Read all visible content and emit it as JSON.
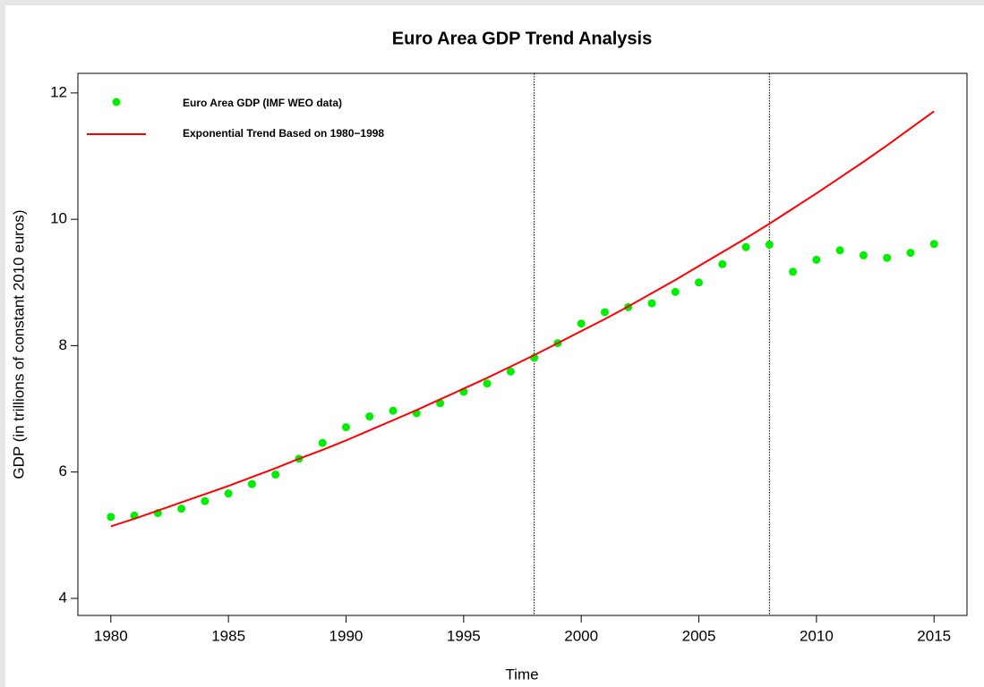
{
  "chart_data": {
    "type": "scatter",
    "title": "Euro Area GDP Trend Analysis",
    "x_label": "Time",
    "y_label": "GDP (in trillions of constant 2010 euros)",
    "x": [
      1980,
      1981,
      1982,
      1983,
      1984,
      1985,
      1986,
      1987,
      1988,
      1989,
      1990,
      1991,
      1992,
      1993,
      1994,
      1995,
      1996,
      1997,
      1998,
      1999,
      2000,
      2001,
      2002,
      2003,
      2004,
      2005,
      2006,
      2007,
      2008,
      2009,
      2010,
      2011,
      2012,
      2013,
      2014,
      2015
    ],
    "series": [
      {
        "name": "Euro Area GDP (IMF WEO data)",
        "type": "scatter",
        "color": "#00ee00",
        "values": [
          5.29,
          5.31,
          5.35,
          5.42,
          5.54,
          5.66,
          5.81,
          5.96,
          6.21,
          6.46,
          6.71,
          6.88,
          6.97,
          6.93,
          7.09,
          7.27,
          7.4,
          7.59,
          7.81,
          8.04,
          8.35,
          8.53,
          8.61,
          8.67,
          8.85,
          9.0,
          9.29,
          9.56,
          9.6,
          9.17,
          9.36,
          9.51,
          9.43,
          9.39,
          9.47,
          9.61
        ]
      },
      {
        "name": "Exponential Trend Based on 1980−1998",
        "type": "line",
        "color": "#ff0000",
        "values": [
          5.14,
          5.26,
          5.39,
          5.52,
          5.65,
          5.78,
          5.92,
          6.06,
          6.21,
          6.35,
          6.5,
          6.66,
          6.82,
          6.98,
          7.15,
          7.32,
          7.49,
          7.67,
          7.85,
          8.04,
          8.23,
          8.42,
          8.62,
          8.83,
          9.04,
          9.26,
          9.48,
          9.7,
          9.93,
          10.17,
          10.41,
          10.66,
          10.91,
          11.17,
          11.44,
          11.71
        ]
      }
    ],
    "vlines": [
      1998,
      2008
    ],
    "xlim": [
      1978.6,
      2016.4
    ],
    "ylim": [
      3.73,
      12.31
    ],
    "xticks": [
      1980,
      1985,
      1990,
      1995,
      2000,
      2005,
      2010,
      2015
    ],
    "yticks": [
      4,
      6,
      8,
      10,
      12
    ],
    "legend": "topleft",
    "grid": false
  }
}
